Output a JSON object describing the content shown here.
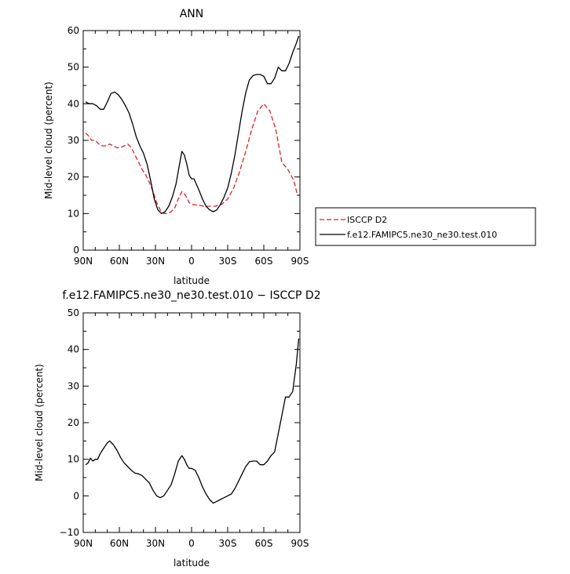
{
  "chart_data": [
    {
      "type": "line",
      "title": "ANN",
      "xlabel": "latitude",
      "ylabel": "Mid-level cloud (percent)",
      "xlim": [
        90,
        -90
      ],
      "ylim": [
        0,
        60
      ],
      "x_ticks": [
        90,
        60,
        30,
        0,
        -30,
        -60,
        -90
      ],
      "x_tick_labels": [
        "90N",
        "60N",
        "30N",
        "0",
        "30S",
        "60S",
        "90S"
      ],
      "y_ticks": [
        0,
        10,
        20,
        30,
        40,
        50,
        60
      ],
      "y_tick_labels": [
        "0",
        "10",
        "20",
        "30",
        "40",
        "50",
        "60"
      ],
      "legend_position": "right",
      "grid": false,
      "series": [
        {
          "name": "ISCCP D2",
          "color": "#dd2222",
          "dash": "dashed",
          "x": [
            88,
            85,
            83,
            80,
            77,
            74,
            71,
            68,
            65,
            62,
            59,
            56,
            53,
            50,
            47,
            44,
            41,
            38,
            35,
            32,
            29,
            26,
            23,
            20,
            17,
            14,
            11,
            8,
            5,
            2,
            0,
            -5,
            -10,
            -15,
            -20,
            -25,
            -30,
            -35,
            -40,
            -45,
            -50,
            -55,
            -60,
            -65,
            -70,
            -75,
            -80,
            -85,
            -88
          ],
          "y": [
            32,
            31,
            30,
            30,
            29,
            28.5,
            28.5,
            29,
            28.5,
            28,
            28,
            28.5,
            29,
            28,
            26,
            24,
            22,
            20.5,
            18.5,
            16,
            13,
            11,
            10,
            10,
            10.5,
            11.5,
            14,
            16,
            15,
            13,
            12.5,
            12.3,
            12,
            12,
            12,
            12.5,
            14,
            17,
            21.5,
            27,
            33,
            38,
            40,
            38,
            33,
            24,
            22,
            19,
            15
          ]
        },
        {
          "name": "f.e12.FAMIPC5.ne30_ne30.test.010",
          "color": "#000000",
          "dash": "solid",
          "x": [
            88,
            85,
            82,
            79,
            76,
            73,
            70,
            67,
            64,
            61,
            58,
            55,
            52,
            49,
            46,
            43,
            40,
            37,
            34,
            31,
            28,
            25,
            22,
            19,
            16,
            13,
            10,
            8,
            6,
            4,
            2,
            0,
            -2,
            -4,
            -6,
            -9,
            -12,
            -15,
            -18,
            -21,
            -24,
            -27,
            -30,
            -33,
            -36,
            -39,
            -42,
            -45,
            -48,
            -51,
            -54,
            -57,
            -60,
            -63,
            -66,
            -69,
            -72,
            -75,
            -78,
            -81,
            -84,
            -87,
            -89
          ],
          "y": [
            40.5,
            40,
            40,
            39.5,
            38.5,
            38.5,
            40.5,
            42.8,
            43.2,
            42.5,
            41.2,
            39.5,
            37.5,
            34.5,
            31,
            28.5,
            26.5,
            23.5,
            19,
            14,
            11,
            10,
            10.5,
            12,
            14.5,
            18,
            23.5,
            27,
            26,
            23.5,
            20.5,
            19.5,
            19.5,
            18,
            16.5,
            14,
            12,
            11,
            10.5,
            11,
            12.5,
            14.5,
            17,
            21,
            26,
            32,
            38,
            43,
            46.5,
            47.7,
            48,
            48,
            47.5,
            45.5,
            45.5,
            47,
            50,
            49,
            49,
            51,
            54,
            56.5,
            58.5
          ]
        }
      ]
    },
    {
      "type": "line",
      "title": "f.e12.FAMIPC5.ne30_ne30.test.010 − ISCCP D2",
      "xlabel": "latitude",
      "ylabel": "Mid-level cloud (percent)",
      "xlim": [
        90,
        -90
      ],
      "ylim": [
        -10,
        50
      ],
      "x_ticks": [
        90,
        60,
        30,
        0,
        -30,
        -60,
        -90
      ],
      "x_tick_labels": [
        "90N",
        "60N",
        "30N",
        "0",
        "30S",
        "60S",
        "90S"
      ],
      "y_ticks": [
        -10,
        0,
        10,
        20,
        30,
        40,
        50
      ],
      "y_tick_labels": [
        "−10",
        "0",
        "10",
        "20",
        "30",
        "40",
        "50"
      ],
      "grid": false,
      "series": [
        {
          "color": "#000000",
          "dash": "solid",
          "x": [
            88,
            86,
            84,
            82,
            80,
            78,
            76,
            74,
            72,
            70,
            68,
            65,
            62,
            59,
            56,
            53,
            50,
            47,
            44,
            41,
            38,
            35,
            32,
            29,
            26,
            23,
            20,
            17,
            14,
            11,
            8,
            6,
            4,
            2,
            0,
            -3,
            -6,
            -9,
            -12,
            -15,
            -18,
            -21,
            -24,
            -27,
            -30,
            -33,
            -36,
            -39,
            -42,
            -45,
            -48,
            -51,
            -54,
            -57,
            -60,
            -63,
            -66,
            -69,
            -72,
            -75,
            -78,
            -81,
            -84,
            -87,
            -89
          ],
          "y": [
            8.5,
            9,
            10.3,
            9.5,
            10,
            10,
            11.5,
            12.5,
            13.5,
            14.5,
            15,
            14,
            12.5,
            10.5,
            9,
            8,
            7,
            6.2,
            6,
            5.5,
            4.5,
            3.5,
            1.5,
            0,
            -0.5,
            0,
            1.5,
            3,
            6,
            9.5,
            11,
            10,
            8.5,
            7.5,
            7.5,
            7,
            5,
            2.5,
            0.5,
            -1,
            -2,
            -1.5,
            -1,
            -0.5,
            0,
            0.5,
            2,
            4,
            6,
            8,
            9.3,
            9.5,
            9.5,
            8.5,
            8.5,
            9.5,
            11,
            12,
            17,
            22,
            27,
            27,
            28.5,
            36,
            43
          ]
        }
      ]
    }
  ]
}
